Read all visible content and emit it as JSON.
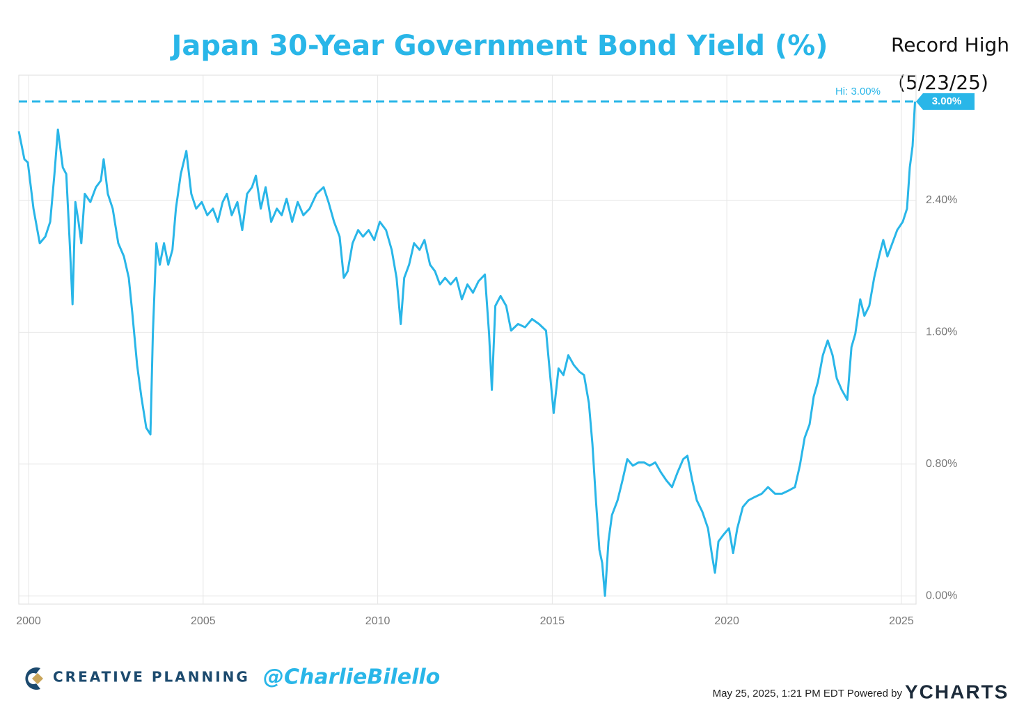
{
  "chart_data": {
    "type": "line",
    "title": "Japan 30-Year Government Bond Yield (%)",
    "annotations": {
      "record": "Record High",
      "record_date": "(5/23/25)",
      "hi_label": "Hi: 3.00%",
      "last_badge": "3.00%"
    },
    "hi_line": 3.0,
    "color": "#29b6e8",
    "xlim": [
      1999.72,
      2025.42
    ],
    "xticks": [
      2000,
      2005,
      2010,
      2015,
      2020,
      2025
    ],
    "ylim": [
      -0.05,
      3.16
    ],
    "yticks": [
      {
        "value": 0,
        "label": "0.00%"
      },
      {
        "value": 0.8,
        "label": "0.80%"
      },
      {
        "value": 1.6,
        "label": "1.60%"
      },
      {
        "value": 2.4,
        "label": "2.40%"
      }
    ],
    "grid": true,
    "x": [
      1999.72,
      1999.88,
      1999.98,
      2000.14,
      2000.32,
      2000.48,
      2000.62,
      2000.74,
      2000.84,
      2000.98,
      2001.08,
      2001.18,
      2001.26,
      2001.34,
      2001.43,
      2001.51,
      2001.61,
      2001.77,
      2001.93,
      2002.07,
      2002.15,
      2002.27,
      2002.41,
      2002.57,
      2002.73,
      2002.87,
      2002.97,
      2003.11,
      2003.23,
      2003.37,
      2003.49,
      2003.56,
      2003.66,
      2003.76,
      2003.88,
      2004.0,
      2004.12,
      2004.22,
      2004.36,
      2004.52,
      2004.66,
      2004.8,
      2004.96,
      2005.12,
      2005.28,
      2005.42,
      2005.56,
      2005.68,
      2005.82,
      2005.98,
      2006.12,
      2006.26,
      2006.4,
      2006.51,
      2006.65,
      2006.79,
      2006.95,
      2007.11,
      2007.25,
      2007.39,
      2007.55,
      2007.71,
      2007.87,
      2008.05,
      2008.25,
      2008.45,
      2008.59,
      2008.75,
      2008.91,
      2009.03,
      2009.14,
      2009.28,
      2009.44,
      2009.58,
      2009.74,
      2009.9,
      2010.06,
      2010.24,
      2010.4,
      2010.54,
      2010.66,
      2010.76,
      2010.9,
      2011.04,
      2011.2,
      2011.34,
      2011.5,
      2011.64,
      2011.78,
      2011.93,
      2012.09,
      2012.25,
      2012.41,
      2012.57,
      2012.73,
      2012.89,
      2013.07,
      2013.19,
      2013.27,
      2013.37,
      2013.52,
      2013.68,
      2013.82,
      2014.02,
      2014.22,
      2014.42,
      2014.62,
      2014.82,
      2014.92,
      2015.04,
      2015.18,
      2015.32,
      2015.46,
      2015.62,
      2015.78,
      2015.91,
      2016.05,
      2016.15,
      2016.25,
      2016.35,
      2016.43,
      2016.51,
      2016.61,
      2016.71,
      2016.87,
      2017.01,
      2017.15,
      2017.31,
      2017.47,
      2017.63,
      2017.79,
      2017.95,
      2018.11,
      2018.27,
      2018.43,
      2018.59,
      2018.75,
      2018.87,
      2019.01,
      2019.14,
      2019.3,
      2019.46,
      2019.58,
      2019.66,
      2019.76,
      2019.9,
      2020.06,
      2020.18,
      2020.3,
      2020.46,
      2020.62,
      2020.8,
      2021.0,
      2021.18,
      2021.38,
      2021.58,
      2021.78,
      2021.95,
      2022.09,
      2022.23,
      2022.37,
      2022.49,
      2022.61,
      2022.75,
      2022.89,
      2023.03,
      2023.15,
      2023.29,
      2023.45,
      2023.57,
      2023.68,
      2023.82,
      2023.94,
      2024.08,
      2024.22,
      2024.36,
      2024.48,
      2024.6,
      2024.74,
      2024.88,
      2025.04,
      2025.16,
      2025.24,
      2025.32,
      2025.39
    ],
    "values": [
      2.82,
      2.65,
      2.63,
      2.35,
      2.14,
      2.18,
      2.27,
      2.56,
      2.83,
      2.6,
      2.56,
      2.14,
      1.77,
      2.39,
      2.27,
      2.14,
      2.44,
      2.39,
      2.48,
      2.52,
      2.65,
      2.44,
      2.35,
      2.14,
      2.06,
      1.93,
      1.72,
      1.4,
      1.21,
      1.02,
      0.98,
      1.59,
      2.14,
      2.01,
      2.14,
      2.01,
      2.1,
      2.35,
      2.56,
      2.7,
      2.44,
      2.35,
      2.39,
      2.31,
      2.35,
      2.27,
      2.39,
      2.44,
      2.31,
      2.39,
      2.22,
      2.44,
      2.48,
      2.55,
      2.35,
      2.48,
      2.27,
      2.35,
      2.31,
      2.41,
      2.27,
      2.39,
      2.31,
      2.35,
      2.44,
      2.48,
      2.39,
      2.27,
      2.18,
      1.93,
      1.97,
      2.14,
      2.22,
      2.18,
      2.22,
      2.16,
      2.27,
      2.22,
      2.1,
      1.93,
      1.65,
      1.93,
      2.01,
      2.14,
      2.1,
      2.16,
      2.01,
      1.97,
      1.89,
      1.93,
      1.89,
      1.93,
      1.8,
      1.89,
      1.84,
      1.91,
      1.95,
      1.59,
      1.25,
      1.76,
      1.82,
      1.76,
      1.61,
      1.65,
      1.63,
      1.68,
      1.65,
      1.61,
      1.38,
      1.11,
      1.38,
      1.34,
      1.46,
      1.4,
      1.36,
      1.34,
      1.17,
      0.92,
      0.58,
      0.28,
      0.2,
      0.0,
      0.33,
      0.49,
      0.58,
      0.7,
      0.83,
      0.79,
      0.81,
      0.81,
      0.79,
      0.81,
      0.75,
      0.7,
      0.66,
      0.75,
      0.83,
      0.85,
      0.7,
      0.58,
      0.51,
      0.41,
      0.24,
      0.14,
      0.33,
      0.37,
      0.41,
      0.26,
      0.41,
      0.54,
      0.58,
      0.6,
      0.62,
      0.66,
      0.62,
      0.62,
      0.64,
      0.66,
      0.79,
      0.96,
      1.04,
      1.21,
      1.3,
      1.46,
      1.55,
      1.46,
      1.32,
      1.25,
      1.19,
      1.51,
      1.59,
      1.8,
      1.7,
      1.76,
      1.93,
      2.06,
      2.16,
      2.06,
      2.14,
      2.22,
      2.27,
      2.35,
      2.6,
      2.73,
      3.0
    ]
  },
  "footer": {
    "brand": "CREATIVE PLANNING",
    "handle": "@CharlieBilello",
    "timestamp": "May 25, 2025, 1:21 PM EDT Powered by",
    "provider": "YCHARTS"
  }
}
